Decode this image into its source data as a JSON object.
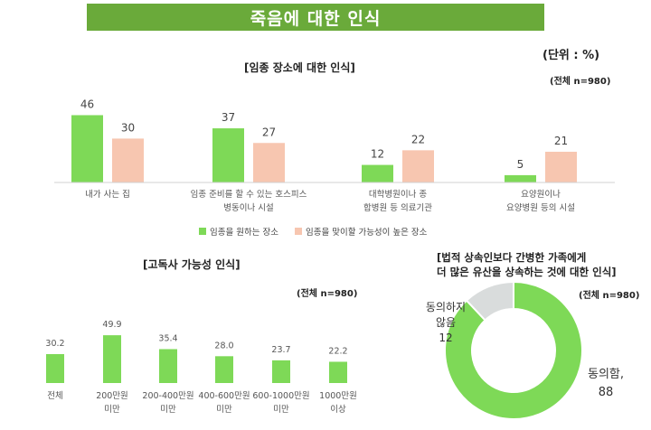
{
  "banner": {
    "title": "죽음에 대한 인식"
  },
  "unit_label": "(단위 : %)",
  "colors": {
    "banner": "#6aaa3a",
    "green": "#7ed957",
    "peach": "#f7c6b0",
    "gray": "#d9dcdc"
  },
  "chart_data": [
    {
      "type": "bar",
      "title": "[임종 장소에 대한 인식]",
      "note": "(전체 n=980)",
      "categories": [
        [
          "내가 사는 집"
        ],
        [
          "임종 준비를 할 수 있는 호스피스",
          "병동이나 시설"
        ],
        [
          "대학병원이나 종",
          "합병원 등 의료기관"
        ],
        [
          "요양원이나",
          "요양병원 등의 시설"
        ]
      ],
      "series": [
        {
          "name": "임종을 원하는 장소",
          "values": [
            46,
            37,
            12,
            5
          ],
          "color": "#7ed957"
        },
        {
          "name": "임종을 맞이할 가능성이 높은 장소",
          "values": [
            30,
            27,
            22,
            21
          ],
          "color": "#f7c6b0"
        }
      ],
      "legend_position": "bottom"
    },
    {
      "type": "bar",
      "title": "[고독사 가능성 인식]",
      "note": "(전체 n=980)",
      "categories": [
        [
          "전체"
        ],
        [
          "200만원",
          "미만"
        ],
        [
          "200-400만원",
          "미만"
        ],
        [
          "400-600만원",
          "미만"
        ],
        [
          "600-1000만원",
          "미만"
        ],
        [
          "1000만원",
          "이상"
        ]
      ],
      "values": [
        30.2,
        49.9,
        35.4,
        28.0,
        23.7,
        22.2
      ],
      "value_labels": [
        "30.2",
        "49.9",
        "35.4",
        "28.0",
        "23.7",
        "22.2"
      ],
      "color": "#7ed957"
    },
    {
      "type": "pie",
      "donut": true,
      "title_lines": [
        "[법적 상속인보다 간병한 가족에게",
        "더 많은 유산을 상속하는 것에 대한 인식]"
      ],
      "note": "(전체 n=980)",
      "slices": [
        {
          "label_lines": [
            "동의함,",
            "88"
          ],
          "value": 88,
          "color": "#7ed957"
        },
        {
          "label_lines": [
            "동의하지",
            "않음",
            "12"
          ],
          "value": 12,
          "color": "#d9dcdc"
        }
      ]
    }
  ]
}
